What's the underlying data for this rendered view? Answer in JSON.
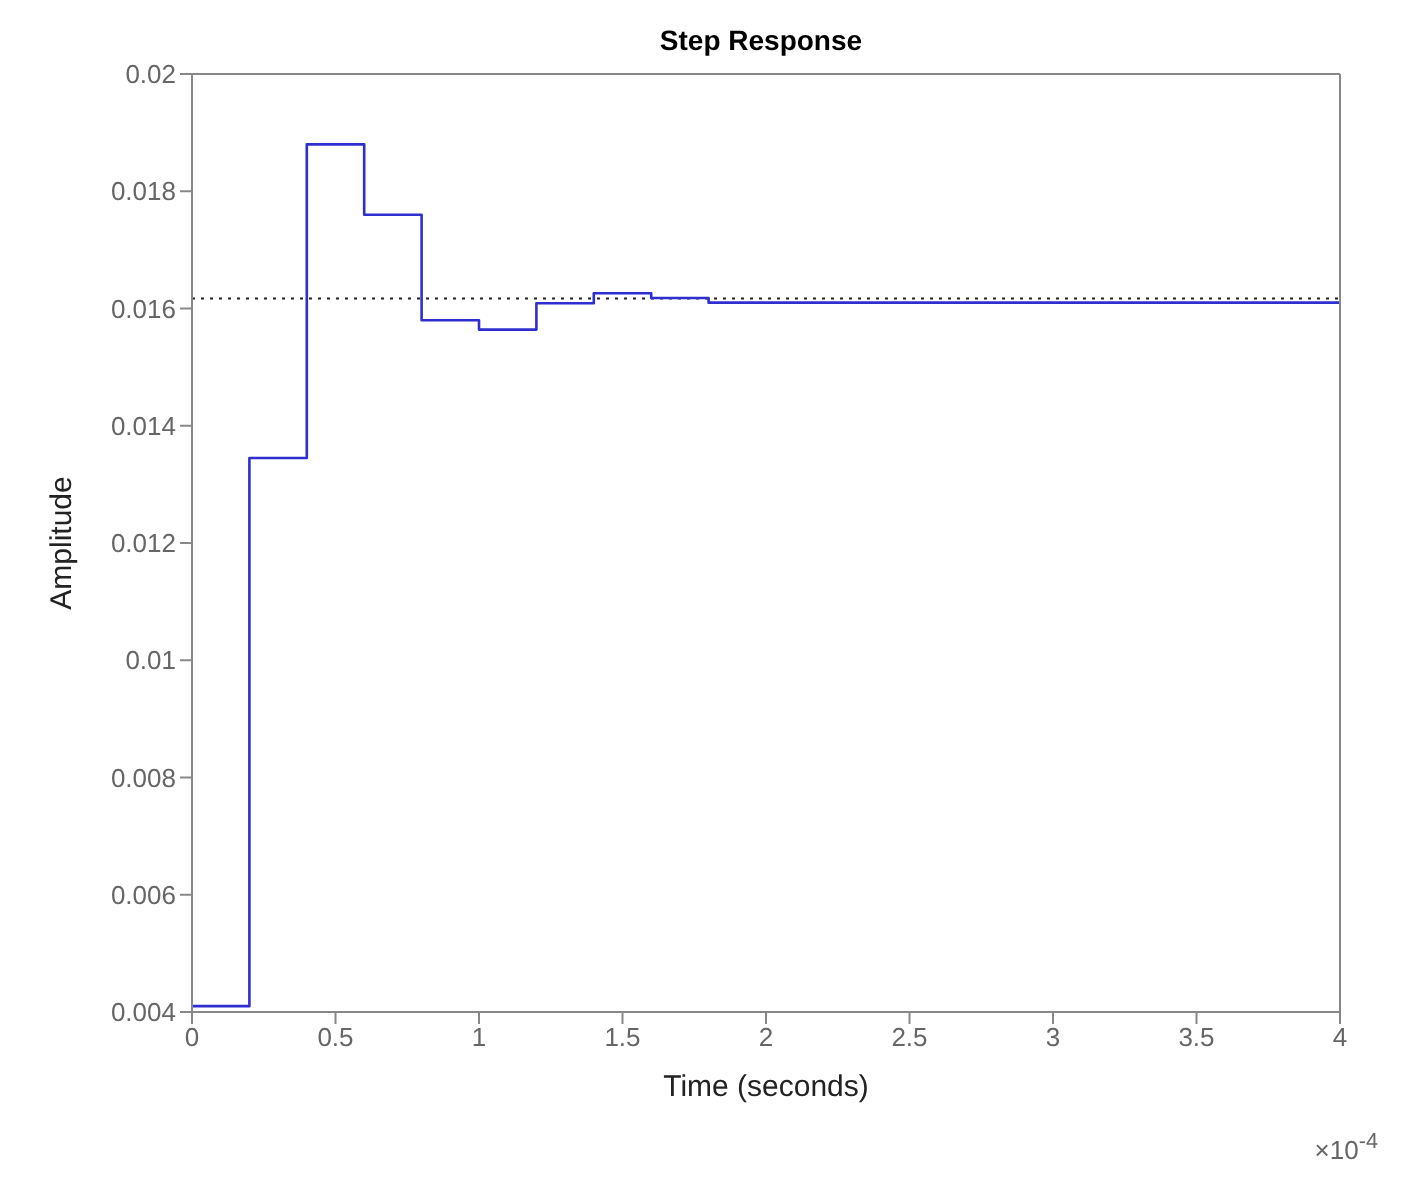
{
  "chart_data": {
    "type": "step",
    "title": "Step Response",
    "xlabel": "Time (seconds)",
    "ylabel": "Amplitude",
    "annotations": [
      "×10$^{-4}$"
    ],
    "x": [
      0,
      0.2,
      0.4,
      0.6,
      0.8,
      1.0,
      1.2,
      1.4,
      1.6,
      1.8,
      4
    ],
    "series": [
      {
        "color": "#2f2fd0",
        "values": [
          0.0041,
          0.01345,
          0.0188,
          0.0176,
          0.0158,
          0.01564,
          0.01609,
          0.01626,
          0.01618,
          0.0161,
          0.0161
        ]
      }
    ],
    "xlim": [
      0,
      4
    ],
    "xticks": [
      0,
      0.5,
      1,
      1.5,
      2,
      2.5,
      3,
      3.5,
      4
    ],
    "ylim": [
      0.004,
      0.02
    ],
    "yticks": [
      0.004,
      0.006,
      0.008,
      0.01,
      0.012,
      0.014,
      0.016,
      0.018,
      0.02
    ],
    "ref_lines": [
      {
        "axis": "y",
        "value": 0.01617,
        "color": "#222222",
        "line_style": "dotted"
      }
    ],
    "grid": false,
    "legend": false
  }
}
